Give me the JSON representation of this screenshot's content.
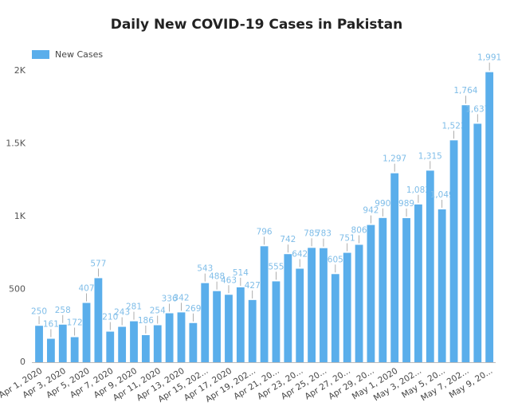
{
  "chart_data": {
    "type": "bar",
    "title": "Daily New COVID-19 Cases in Pakistan",
    "categories": [
      "Apr 1, 2020",
      null,
      "Apr 3, 2020",
      null,
      "Apr 5, 2020",
      null,
      "Apr 7, 2020",
      null,
      "Apr 9, 2020",
      null,
      "Apr 11, 2020",
      null,
      "Apr 13, 2020",
      null,
      "Apr 15, 202...",
      null,
      "Apr 17, 2020",
      null,
      "Apr 19, 202...",
      null,
      "Apr 21, 20...",
      null,
      "Apr 23, 20...",
      null,
      "Apr 25, 20...",
      null,
      "Apr 27, 20...",
      null,
      "Apr 29, 20...",
      null,
      "May 1, 2020",
      null,
      "May 3, 202...",
      null,
      "May 5, 20...",
      null,
      "May 7, 202...",
      null,
      "May 9, 20..."
    ],
    "series": [
      {
        "name": "New Cases",
        "color": "#5aaeeb",
        "values": [
          250,
          161,
          258,
          172,
          407,
          577,
          210,
          243,
          281,
          186,
          254,
          336,
          342,
          269,
          543,
          488,
          463,
          514,
          427,
          796,
          555,
          742,
          642,
          785,
          783,
          605,
          751,
          806,
          942,
          990,
          1297,
          989,
          1083,
          1315,
          1049,
          1523,
          1764,
          1637,
          1991
        ],
        "value_labels": [
          "250",
          "161",
          "258",
          "172",
          "407",
          "577",
          "210",
          "243",
          "281",
          "186",
          "254",
          "336",
          "342",
          "269",
          "543",
          "488",
          "463",
          "514",
          "427",
          "796",
          "555",
          "742",
          "642",
          "785",
          "783",
          "605",
          "751",
          "806",
          "942",
          "990",
          "1,297",
          "989",
          "1,083",
          "1,315",
          "1,049",
          "1,523",
          "1,764",
          "1,637",
          "1,991"
        ]
      }
    ],
    "ylim": [
      0,
      2100
    ],
    "yticks": [
      0,
      500,
      {
        "value": 1000,
        "label": "1K"
      },
      {
        "value": 1500,
        "label": "1.5K"
      },
      {
        "value": 2000,
        "label": "2K"
      }
    ],
    "grid": false,
    "legend": "top-left"
  }
}
